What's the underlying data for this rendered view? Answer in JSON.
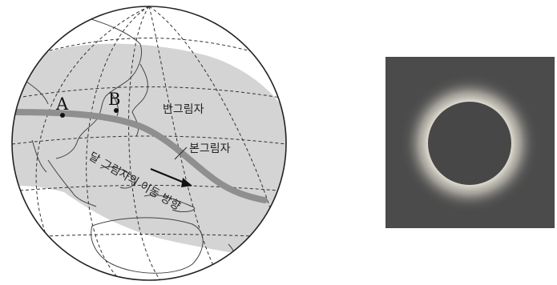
{
  "globe": {
    "point_a_label": "A",
    "point_b_label": "B",
    "penumbra_label": "반그림자",
    "umbra_label": "본그림자",
    "shadow_direction_label": "달 그림자의 이동 방향",
    "colors": {
      "penumbra_fill": "#d4d4d4",
      "umbra_stroke": "#8f8f8f",
      "outline": "#222222"
    }
  },
  "eclipse_photo": {
    "colors": {
      "background": "#4b4b4b",
      "moon_disk": "#474747",
      "corona": "#f4f1e6"
    }
  }
}
